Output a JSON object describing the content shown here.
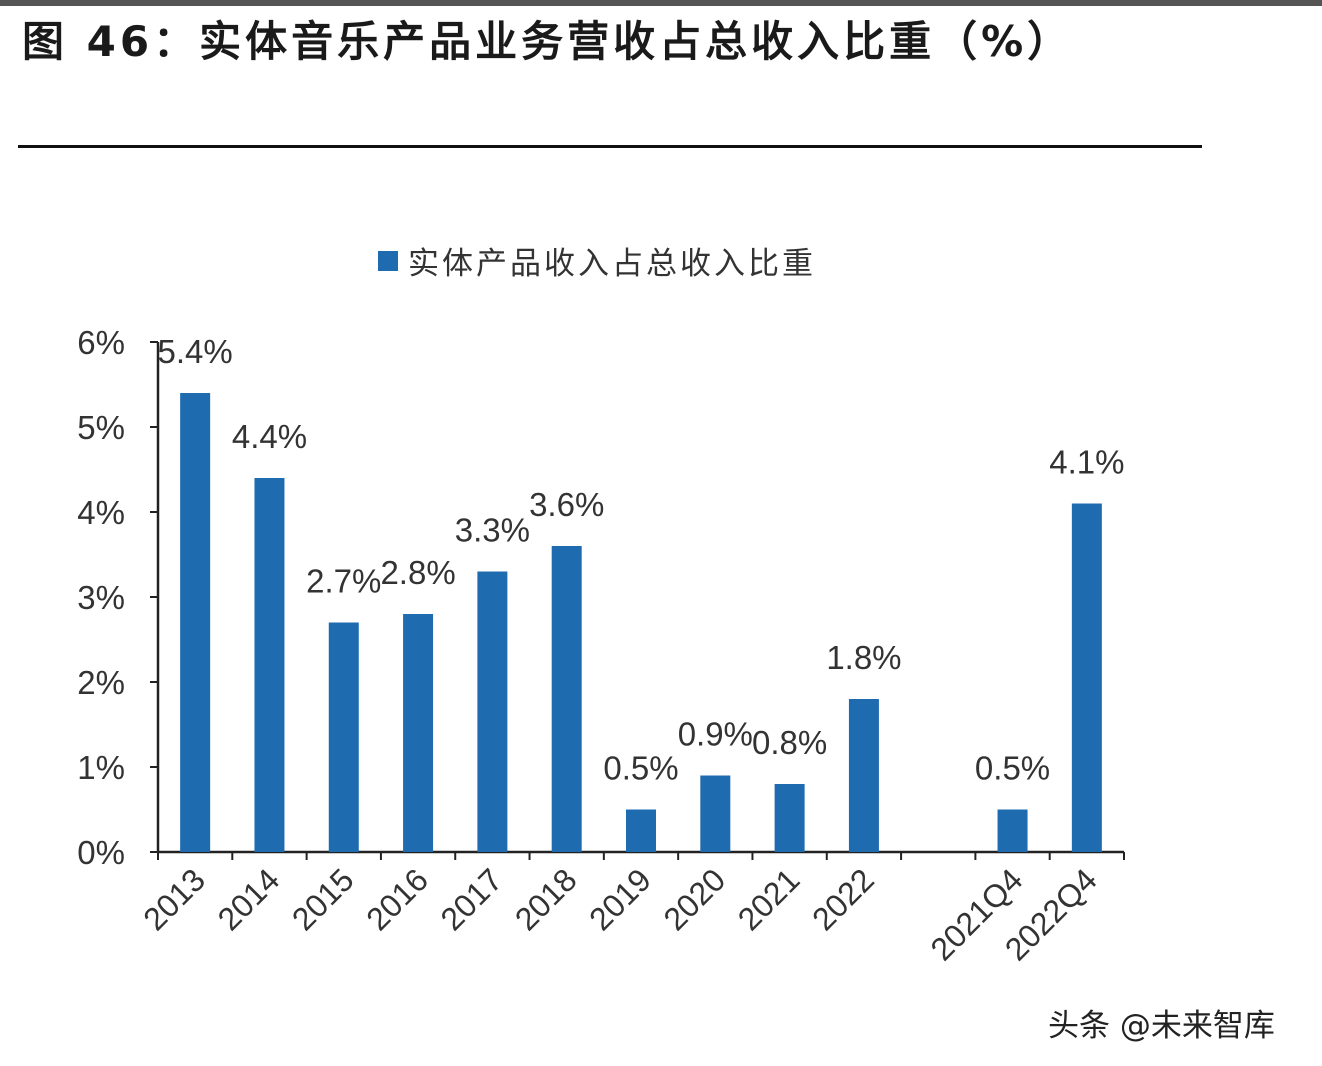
{
  "title": "图 46：实体音乐产品业务营收占总收入比重（%）",
  "watermark": "头条 @未来智库",
  "chart_data": {
    "type": "bar",
    "title": "",
    "legend": {
      "position": "top",
      "entries": [
        "实体产品收入占总收入比重"
      ]
    },
    "categories": [
      "2013",
      "2014",
      "2015",
      "2016",
      "2017",
      "2018",
      "2019",
      "2020",
      "2021",
      "2022",
      "",
      "2021Q4",
      "2022Q4"
    ],
    "series": [
      {
        "name": "实体产品收入占总收入比重",
        "values": [
          5.4,
          4.4,
          2.7,
          2.8,
          3.3,
          3.6,
          0.5,
          0.9,
          0.8,
          1.8,
          null,
          0.5,
          4.1
        ],
        "labels": [
          "5.4%",
          "4.4%",
          "2.7%",
          "2.8%",
          "3.3%",
          "3.6%",
          "0.5%",
          "0.9%",
          "0.8%",
          "1.8%",
          "",
          "0.5%",
          "4.1%"
        ],
        "color": "#1f6bb0"
      }
    ],
    "yticks": [
      "0%",
      "1%",
      "2%",
      "3%",
      "4%",
      "5%",
      "6%"
    ],
    "ylim": [
      0,
      6
    ],
    "xlabel": "",
    "ylabel": "",
    "grid": false
  }
}
